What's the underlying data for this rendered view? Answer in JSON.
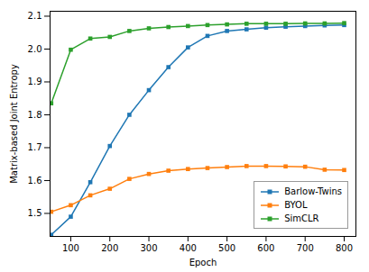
{
  "chart_data": {
    "type": "line",
    "xlabel": "Epoch",
    "ylabel": "Matrix-based Joint Entropy",
    "x": [
      50,
      100,
      150,
      200,
      250,
      300,
      350,
      400,
      450,
      500,
      550,
      600,
      650,
      700,
      750,
      800
    ],
    "series": [
      {
        "name": "Barlow-Twins",
        "color": "#1f77b4",
        "marker": "square",
        "values": [
          1.435,
          1.49,
          1.595,
          1.705,
          1.8,
          1.875,
          1.945,
          2.005,
          2.04,
          2.055,
          2.06,
          2.065,
          2.068,
          2.07,
          2.072,
          2.073
        ]
      },
      {
        "name": "BYOL",
        "color": "#ff7f0e",
        "marker": "square",
        "values": [
          1.505,
          1.525,
          1.555,
          1.575,
          1.605,
          1.62,
          1.63,
          1.635,
          1.638,
          1.641,
          1.644,
          1.644,
          1.643,
          1.642,
          1.633,
          1.632
        ]
      },
      {
        "name": "SimCLR",
        "color": "#2ca02c",
        "marker": "square",
        "values": [
          1.835,
          1.998,
          2.032,
          2.037,
          2.055,
          2.063,
          2.067,
          2.07,
          2.073,
          2.075,
          2.077,
          2.077,
          2.077,
          2.078,
          2.078,
          2.079
        ]
      }
    ],
    "xlim": [
      47,
      830
    ],
    "ylim": [
      1.43,
      2.115
    ],
    "xticks": [
      100,
      200,
      300,
      400,
      500,
      600,
      700,
      800
    ],
    "yticks": [
      1.5,
      1.6,
      1.7,
      1.8,
      1.9,
      {
        "value": 2.0,
        "label": "2.0"
      },
      2.1
    ],
    "legend": "lower right",
    "grid": false
  }
}
